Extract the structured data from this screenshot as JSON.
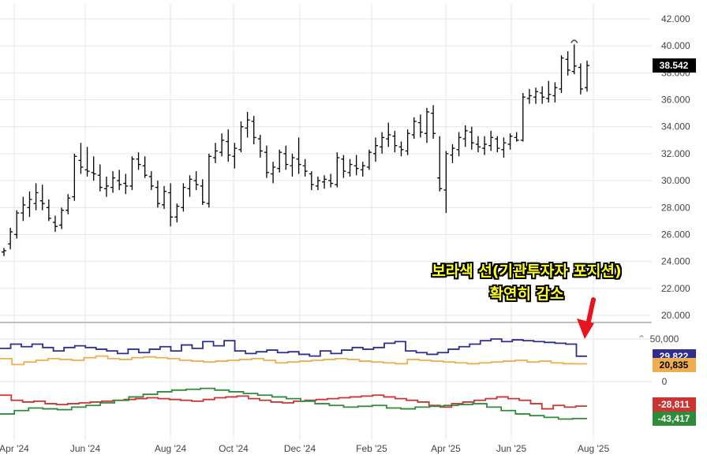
{
  "annotation": {
    "line1": "보라색 선(기관투자자 포지션)",
    "line2": "확연히 감소"
  },
  "icons": {
    "collapse": "collapse-caret-icon",
    "arrow": "red-down-arrow-icon"
  },
  "colors": {
    "price": "#000000",
    "purple": "#2e2e8f",
    "orange": "#f0ad4e",
    "red": "#cc3333",
    "green": "#2e8b3a",
    "arrow": "#e8141c"
  },
  "chart_data": [
    {
      "type": "ohlc",
      "x_axis": {
        "tick_labels": [
          "Apr '24",
          "Jun '24",
          "Aug '24",
          "Oct '24",
          "Dec '24",
          "Feb '25",
          "Apr '25",
          "Jun '25",
          "Aug '25"
        ]
      },
      "y_axis": {
        "min": 20000,
        "max": 42000,
        "tick_labels": [
          "20.000",
          "22.000",
          "24.000",
          "26.000",
          "28.000",
          "30.000",
          "32.000",
          "34.000",
          "36.000",
          "38.000",
          "40.000",
          "42.000"
        ]
      },
      "last_price_label": "38.542",
      "grid": true,
      "bars": [
        [
          24700,
          25000,
          24400,
          24800
        ],
        [
          25300,
          26500,
          24900,
          26200
        ],
        [
          26000,
          27800,
          25700,
          27600
        ],
        [
          27600,
          28800,
          27000,
          28200
        ],
        [
          28000,
          29200,
          27300,
          28600
        ],
        [
          28300,
          29800,
          27800,
          29100
        ],
        [
          28500,
          29700,
          27800,
          28300
        ],
        [
          28000,
          28600,
          27000,
          27200
        ],
        [
          26900,
          27400,
          26200,
          26600
        ],
        [
          26700,
          28000,
          26400,
          27800
        ],
        [
          27800,
          29000,
          27500,
          28700
        ],
        [
          28800,
          32000,
          28500,
          31800
        ],
        [
          31500,
          32800,
          30500,
          31000
        ],
        [
          30800,
          32500,
          30300,
          30700
        ],
        [
          30600,
          31800,
          30000,
          30500
        ],
        [
          30400,
          31200,
          29200,
          29500
        ],
        [
          29400,
          30300,
          28800,
          29600
        ],
        [
          29500,
          30700,
          29100,
          30200
        ],
        [
          30000,
          30800,
          29300,
          29700
        ],
        [
          29800,
          30500,
          29000,
          29600
        ],
        [
          29600,
          31800,
          29300,
          31600
        ],
        [
          31600,
          32100,
          30800,
          31200
        ],
        [
          31100,
          31800,
          30200,
          30400
        ],
        [
          30300,
          30700,
          29300,
          29600
        ],
        [
          29500,
          30000,
          28000,
          28300
        ],
        [
          28200,
          29600,
          27900,
          29200
        ],
        [
          29100,
          29800,
          26600,
          27300
        ],
        [
          27300,
          28300,
          26900,
          28100
        ],
        [
          28000,
          29800,
          27700,
          29500
        ],
        [
          29400,
          30400,
          28800,
          30100
        ],
        [
          30000,
          30700,
          29300,
          29700
        ],
        [
          29600,
          30100,
          28200,
          28400
        ],
        [
          28300,
          32000,
          28000,
          31800
        ],
        [
          31700,
          32800,
          31300,
          32200
        ],
        [
          32100,
          33500,
          31800,
          33000
        ],
        [
          32900,
          33800,
          31400,
          31900
        ],
        [
          31800,
          32800,
          30900,
          32400
        ],
        [
          32300,
          34400,
          32100,
          34000
        ],
        [
          33900,
          35100,
          33200,
          34500
        ],
        [
          34400,
          34800,
          32700,
          33200
        ],
        [
          33100,
          33400,
          31700,
          32200
        ],
        [
          32100,
          32600,
          30200,
          30600
        ],
        [
          30500,
          31400,
          29800,
          31000
        ],
        [
          30900,
          32300,
          30600,
          32100
        ],
        [
          32000,
          32600,
          30800,
          31200
        ],
        [
          31100,
          32000,
          30300,
          31700
        ],
        [
          31600,
          33200,
          30500,
          31200
        ],
        [
          31100,
          31600,
          30300,
          30700
        ],
        [
          30500,
          30700,
          29300,
          29700
        ],
        [
          29600,
          30300,
          29300,
          30000
        ],
        [
          29900,
          30400,
          29400,
          30100
        ],
        [
          30000,
          30500,
          29500,
          29800
        ],
        [
          29700,
          32100,
          29500,
          31700
        ],
        [
          31600,
          31900,
          30200,
          30700
        ],
        [
          30600,
          31600,
          30300,
          31200
        ],
        [
          31100,
          31900,
          30400,
          30900
        ],
        [
          30800,
          31400,
          30300,
          31100
        ],
        [
          31000,
          32300,
          30800,
          32100
        ],
        [
          32000,
          33200,
          31400,
          32600
        ],
        [
          32500,
          33600,
          32000,
          33200
        ],
        [
          33100,
          34300,
          32500,
          33400
        ],
        [
          33300,
          33700,
          32100,
          32600
        ],
        [
          32500,
          32900,
          31800,
          32300
        ],
        [
          32200,
          33800,
          31900,
          33500
        ],
        [
          33400,
          34700,
          33100,
          34400
        ],
        [
          34300,
          34900,
          33200,
          33600
        ],
        [
          33500,
          35400,
          32800,
          35100
        ],
        [
          35000,
          35600,
          33100,
          33500
        ],
        [
          30200,
          33300,
          29200,
          29400
        ],
        [
          29300,
          32200,
          27600,
          32000
        ],
        [
          31900,
          32700,
          31300,
          32400
        ],
        [
          32300,
          33600,
          31800,
          33200
        ],
        [
          33100,
          34100,
          32500,
          33700
        ],
        [
          33600,
          34000,
          32300,
          32800
        ],
        [
          32700,
          33300,
          32100,
          32500
        ],
        [
          32400,
          33300,
          31900,
          32700
        ],
        [
          32600,
          33700,
          32200,
          33200
        ],
        [
          33100,
          33300,
          32100,
          32400
        ],
        [
          32300,
          33200,
          31700,
          32800
        ],
        [
          32700,
          33500,
          32300,
          33300
        ],
        [
          33200,
          33600,
          32900,
          33000
        ],
        [
          33000,
          36500,
          32900,
          36200
        ],
        [
          36100,
          36800,
          35700,
          36300
        ],
        [
          36200,
          36900,
          35700,
          36600
        ],
        [
          36500,
          37000,
          35700,
          36200
        ],
        [
          36100,
          37400,
          35800,
          36400
        ],
        [
          36300,
          37300,
          35800,
          36900
        ],
        [
          36800,
          39300,
          36500,
          39100
        ],
        [
          39000,
          39600,
          37800,
          38200
        ],
        [
          38100,
          40100,
          37900,
          38500
        ],
        [
          38400,
          38700,
          36400,
          36800
        ],
        [
          36900,
          38900,
          36600,
          38542
        ]
      ]
    },
    {
      "type": "step-line",
      "description": "positioning indicator",
      "y_axis": {
        "tick_labels": [
          "50,000",
          "0"
        ]
      },
      "series": [
        {
          "labeled_value": "29,822",
          "values": [
            39000,
            44000,
            41000,
            44000,
            40000,
            36000,
            40000,
            42000,
            40000,
            38000,
            36000,
            33000,
            38000,
            34000,
            38000,
            41000,
            36000,
            43000,
            39000,
            47000,
            42000,
            48000,
            36000,
            33000,
            35000,
            37000,
            34000,
            35000,
            32000,
            30000,
            36000,
            33000,
            37000,
            40000,
            38000,
            40000,
            45000,
            47000,
            36000,
            34000,
            32000,
            34000,
            38000,
            41000,
            44000,
            48000,
            50000,
            47000,
            49000,
            48000,
            47000,
            46000,
            45000,
            44000,
            29822
          ]
        },
        {
          "labeled_value": "20,835",
          "values": [
            27000,
            20000,
            23000,
            25000,
            27000,
            26000,
            25000,
            28000,
            30000,
            27000,
            26000,
            28000,
            29000,
            28000,
            27000,
            25000,
            24000,
            23000,
            24000,
            25000,
            26000,
            27000,
            25000,
            22000,
            23000,
            24000,
            25000,
            26000,
            27000,
            26000,
            24000,
            23000,
            22000,
            21000,
            26000,
            25000,
            24000,
            23000,
            22000,
            21000,
            22000,
            23000,
            24000,
            25000,
            23000,
            24000,
            22000,
            21000,
            20835
          ]
        },
        {
          "labeled_value": "-28,811",
          "values": [
            -16000,
            -22000,
            -24000,
            -23000,
            -26000,
            -27000,
            -26000,
            -25000,
            -24000,
            -23000,
            -22000,
            -21000,
            -20000,
            -19000,
            -20000,
            -21000,
            -22000,
            -23000,
            -21000,
            -19000,
            -18000,
            -17000,
            -20000,
            -22000,
            -24000,
            -25000,
            -23000,
            -22000,
            -21000,
            -20000,
            -19000,
            -18000,
            -17000,
            -16000,
            -18000,
            -20000,
            -22000,
            -24000,
            -28000,
            -30000,
            -26000,
            -24000,
            -22000,
            -20000,
            -18000,
            -20000,
            -22000,
            -26000,
            -32000,
            -28000,
            -30000,
            -28811
          ]
        },
        {
          "labeled_value": "-43,417",
          "values": [
            -38000,
            -34000,
            -31000,
            -32000,
            -33000,
            -30000,
            -28000,
            -25000,
            -22000,
            -18000,
            -15000,
            -12000,
            -10000,
            -9000,
            -8000,
            -10000,
            -12000,
            -14000,
            -16000,
            -18000,
            -20000,
            -23000,
            -26000,
            -28000,
            -30000,
            -29000,
            -28000,
            -31000,
            -32000,
            -30000,
            -29000,
            -28000,
            -27000,
            -26000,
            -30000,
            -34000,
            -38000,
            -40000,
            -42000,
            -44000,
            -43417
          ]
        }
      ]
    }
  ]
}
